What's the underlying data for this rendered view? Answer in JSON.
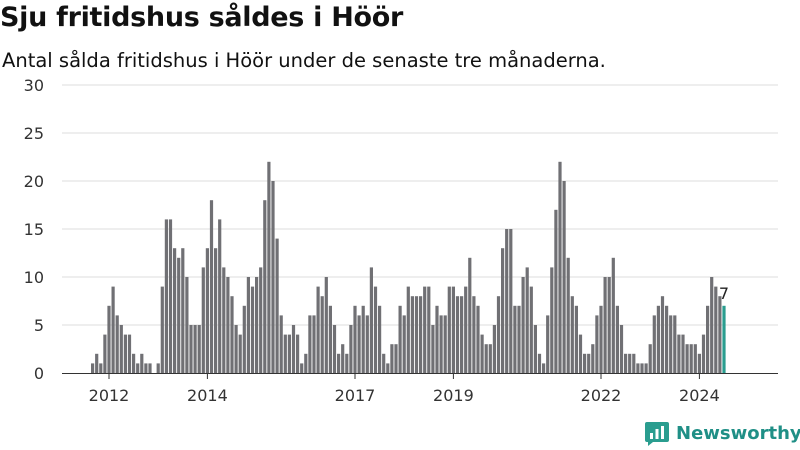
{
  "title": "Sju fritidshus såldes i Höör",
  "subtitle": "Antal sålda fritidshus i Höör under de senaste tre månaderna.",
  "brand": {
    "name": "Newsworthy",
    "icon": "newsworthy-logo-icon",
    "color": "#2a9d8f"
  },
  "colors": {
    "bar": "#707074",
    "highlight": "#2a9d8f",
    "grid": "#dddddd",
    "axis": "#333333"
  },
  "chart_data": {
    "type": "bar",
    "title": "Sju fritidshus såldes i Höör",
    "subtitle": "Antal sålda fritidshus i Höör under de senaste tre månaderna.",
    "ylim": [
      0,
      30
    ],
    "yticks": [
      "0",
      "5",
      "10",
      "15",
      "20",
      "25",
      "30"
    ],
    "grid": true,
    "x_start": "2011-09",
    "x_step": "1 month",
    "xtick_labels": [
      {
        "label": "2012",
        "month": "2012-01"
      },
      {
        "label": "2014",
        "month": "2014-01"
      },
      {
        "label": "2017",
        "month": "2017-01"
      },
      {
        "label": "2019",
        "month": "2019-01"
      },
      {
        "label": "2022",
        "month": "2022-01"
      },
      {
        "label": "2024",
        "month": "2024-01"
      }
    ],
    "values": [
      1,
      2,
      1,
      4,
      7,
      9,
      6,
      5,
      4,
      4,
      2,
      1,
      2,
      1,
      1,
      0,
      1,
      9,
      16,
      16,
      13,
      12,
      13,
      10,
      5,
      5,
      5,
      11,
      13,
      18,
      13,
      16,
      11,
      10,
      8,
      5,
      4,
      7,
      10,
      9,
      10,
      11,
      18,
      22,
      20,
      14,
      6,
      4,
      4,
      5,
      4,
      1,
      2,
      6,
      6,
      9,
      8,
      10,
      7,
      5,
      2,
      3,
      2,
      5,
      7,
      6,
      7,
      6,
      11,
      9,
      7,
      2,
      1,
      3,
      3,
      7,
      6,
      9,
      8,
      8,
      8,
      9,
      9,
      5,
      7,
      6,
      6,
      9,
      9,
      8,
      8,
      9,
      12,
      8,
      7,
      4,
      3,
      3,
      5,
      8,
      13,
      15,
      15,
      7,
      7,
      10,
      11,
      9,
      5,
      2,
      1,
      6,
      11,
      17,
      22,
      20,
      12,
      8,
      7,
      4,
      2,
      2,
      3,
      6,
      7,
      10,
      10,
      12,
      7,
      5,
      2,
      2,
      2,
      1,
      1,
      1,
      3,
      6,
      7,
      8,
      7,
      6,
      6,
      4,
      4,
      3,
      3,
      3,
      2,
      4,
      7,
      10,
      9,
      8,
      7
    ],
    "highlight": {
      "label": "7",
      "value": 7
    }
  }
}
